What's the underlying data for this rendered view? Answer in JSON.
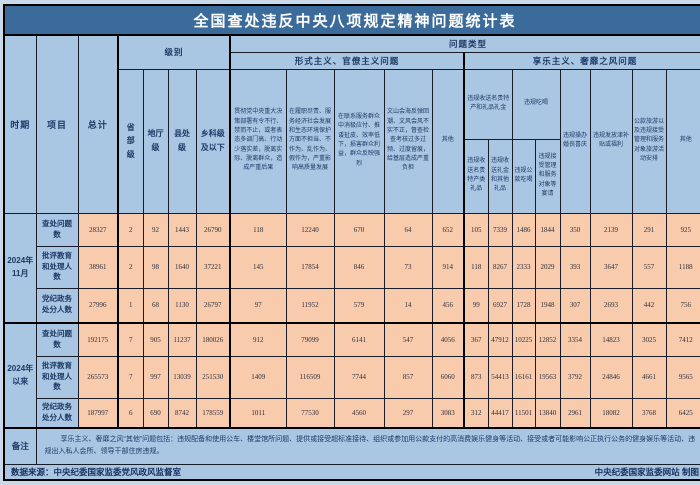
{
  "title": "全国查处违反中央八项规定精神问题统计表",
  "colors": {
    "title_bar": "#3a6b9b",
    "title_text": "#ffffff",
    "header_bg": "#a9c6e3",
    "header_text": "#1f3a66",
    "data_bg": "#f8cbad",
    "border": "#000000"
  },
  "chart_data": {
    "type": "table",
    "header": {
      "period": "时期",
      "item": "项目",
      "total": "总计",
      "level_group": "级别",
      "levels": [
        "省部级",
        "地厅级",
        "县处级",
        "乡科级及以下"
      ],
      "problem_group": "问题类型",
      "formalism_group": "形式主义、官僚主义问题",
      "formalism_cols": [
        "贯彻党中央重大决策部署有令不行、禁而不止，或者表态多调门高、行动少落实差，脱离实际、脱离群众，造成严重后果",
        "在履职尽责、服务经济社会发展和生态环境保护方面不担当、不作为、乱作为、假作为，严重影响高质量发展",
        "在联系服务群众中消极应付、推诿扯皮、效率低下，损害群众利益，群众反映强烈",
        "文山会海反弹回潮、文风会风不实不正，督查检查考核过多过频、过度留痕，给基层造成严重负担",
        "其他"
      ],
      "hedonism_group": "享乐主义、奢靡之风问题",
      "gift_group": "违规收送名贵特产和礼品礼金",
      "gift_cols": [
        "违规收送名贵特产类礼品",
        "违规收送礼金和其他礼品"
      ],
      "dining_group": "违规吃喝",
      "dining_cols": [
        "违规公款吃喝",
        "违规接受管理和服务对象等宴请"
      ],
      "wedding_col": "违规操办婚丧喜庆",
      "allowance_col": "违规发放津补贴或福利",
      "travel_col": "公款旅游以及违规接受管理和服务对象旅游活动安排",
      "other_col": "其他"
    },
    "period_groups": [
      {
        "label": "2024年11月",
        "rows": [
          {
            "item": "查处问题数",
            "total": "28327",
            "levels": [
              "2",
              "92",
              "1443",
              "26790"
            ],
            "types": [
              "118",
              "12240",
              "670",
              "64",
              "652",
              "105",
              "7339",
              "1486",
              "1844",
              "350",
              "2139",
              "291",
              "925"
            ]
          },
          {
            "item": "批评教育和处理人数",
            "total": "38961",
            "levels": [
              "2",
              "98",
              "1640",
              "37221"
            ],
            "types": [
              "145",
              "17854",
              "846",
              "73",
              "914",
              "118",
              "8267",
              "2333",
              "2029",
              "393",
              "3647",
              "557",
              "1188"
            ]
          },
          {
            "item": "党纪政务处分人数",
            "total": "27996",
            "levels": [
              "1",
              "68",
              "1130",
              "26797"
            ],
            "types": [
              "97",
              "11952",
              "579",
              "14",
              "456",
              "99",
              "6927",
              "1728",
              "1948",
              "307",
              "2693",
              "442",
              "756"
            ]
          }
        ]
      },
      {
        "label": "2024年以来",
        "rows": [
          {
            "item": "查处问题数",
            "total": "192175",
            "levels": [
              "7",
              "905",
              "11237",
              "180026"
            ],
            "types": [
              "912",
              "79099",
              "6141",
              "547",
              "4056",
              "367",
              "47912",
              "10225",
              "12852",
              "3354",
              "14823",
              "3025",
              "7412"
            ]
          },
          {
            "item": "批评教育和处理人数",
            "total": "265573",
            "levels": [
              "7",
              "997",
              "13039",
              "251530"
            ],
            "types": [
              "1409",
              "116509",
              "7744",
              "857",
              "6060",
              "873",
              "54413",
              "16161",
              "19563",
              "3792",
              "24846",
              "4661",
              "9565"
            ]
          },
          {
            "item": "党纪政务处分人数",
            "total": "187997",
            "levels": [
              "6",
              "690",
              "8742",
              "178559"
            ],
            "types": [
              "1011",
              "77530",
              "4560",
              "297",
              "3083",
              "312",
              "44417",
              "11501",
              "13840",
              "2961",
              "18082",
              "3768",
              "6425"
            ]
          }
        ]
      }
    ],
    "remark": {
      "label": "备注",
      "text": "享乐主义、奢靡之风“其他”问题包括：违规配备和使用公车、楼堂馆所问题、提供或接受超标准接待、组织或参加用公款支付的高消费娱乐健身等活动、接受或者可能影响公正执行公务的健身娱乐等活动、违规出入私人会所、领导干部住房违规。"
    },
    "source": {
      "left": "数据来源：中央纪委国家监委党风政风监督室",
      "right": "中央纪委国家监委网站 制图"
    }
  }
}
